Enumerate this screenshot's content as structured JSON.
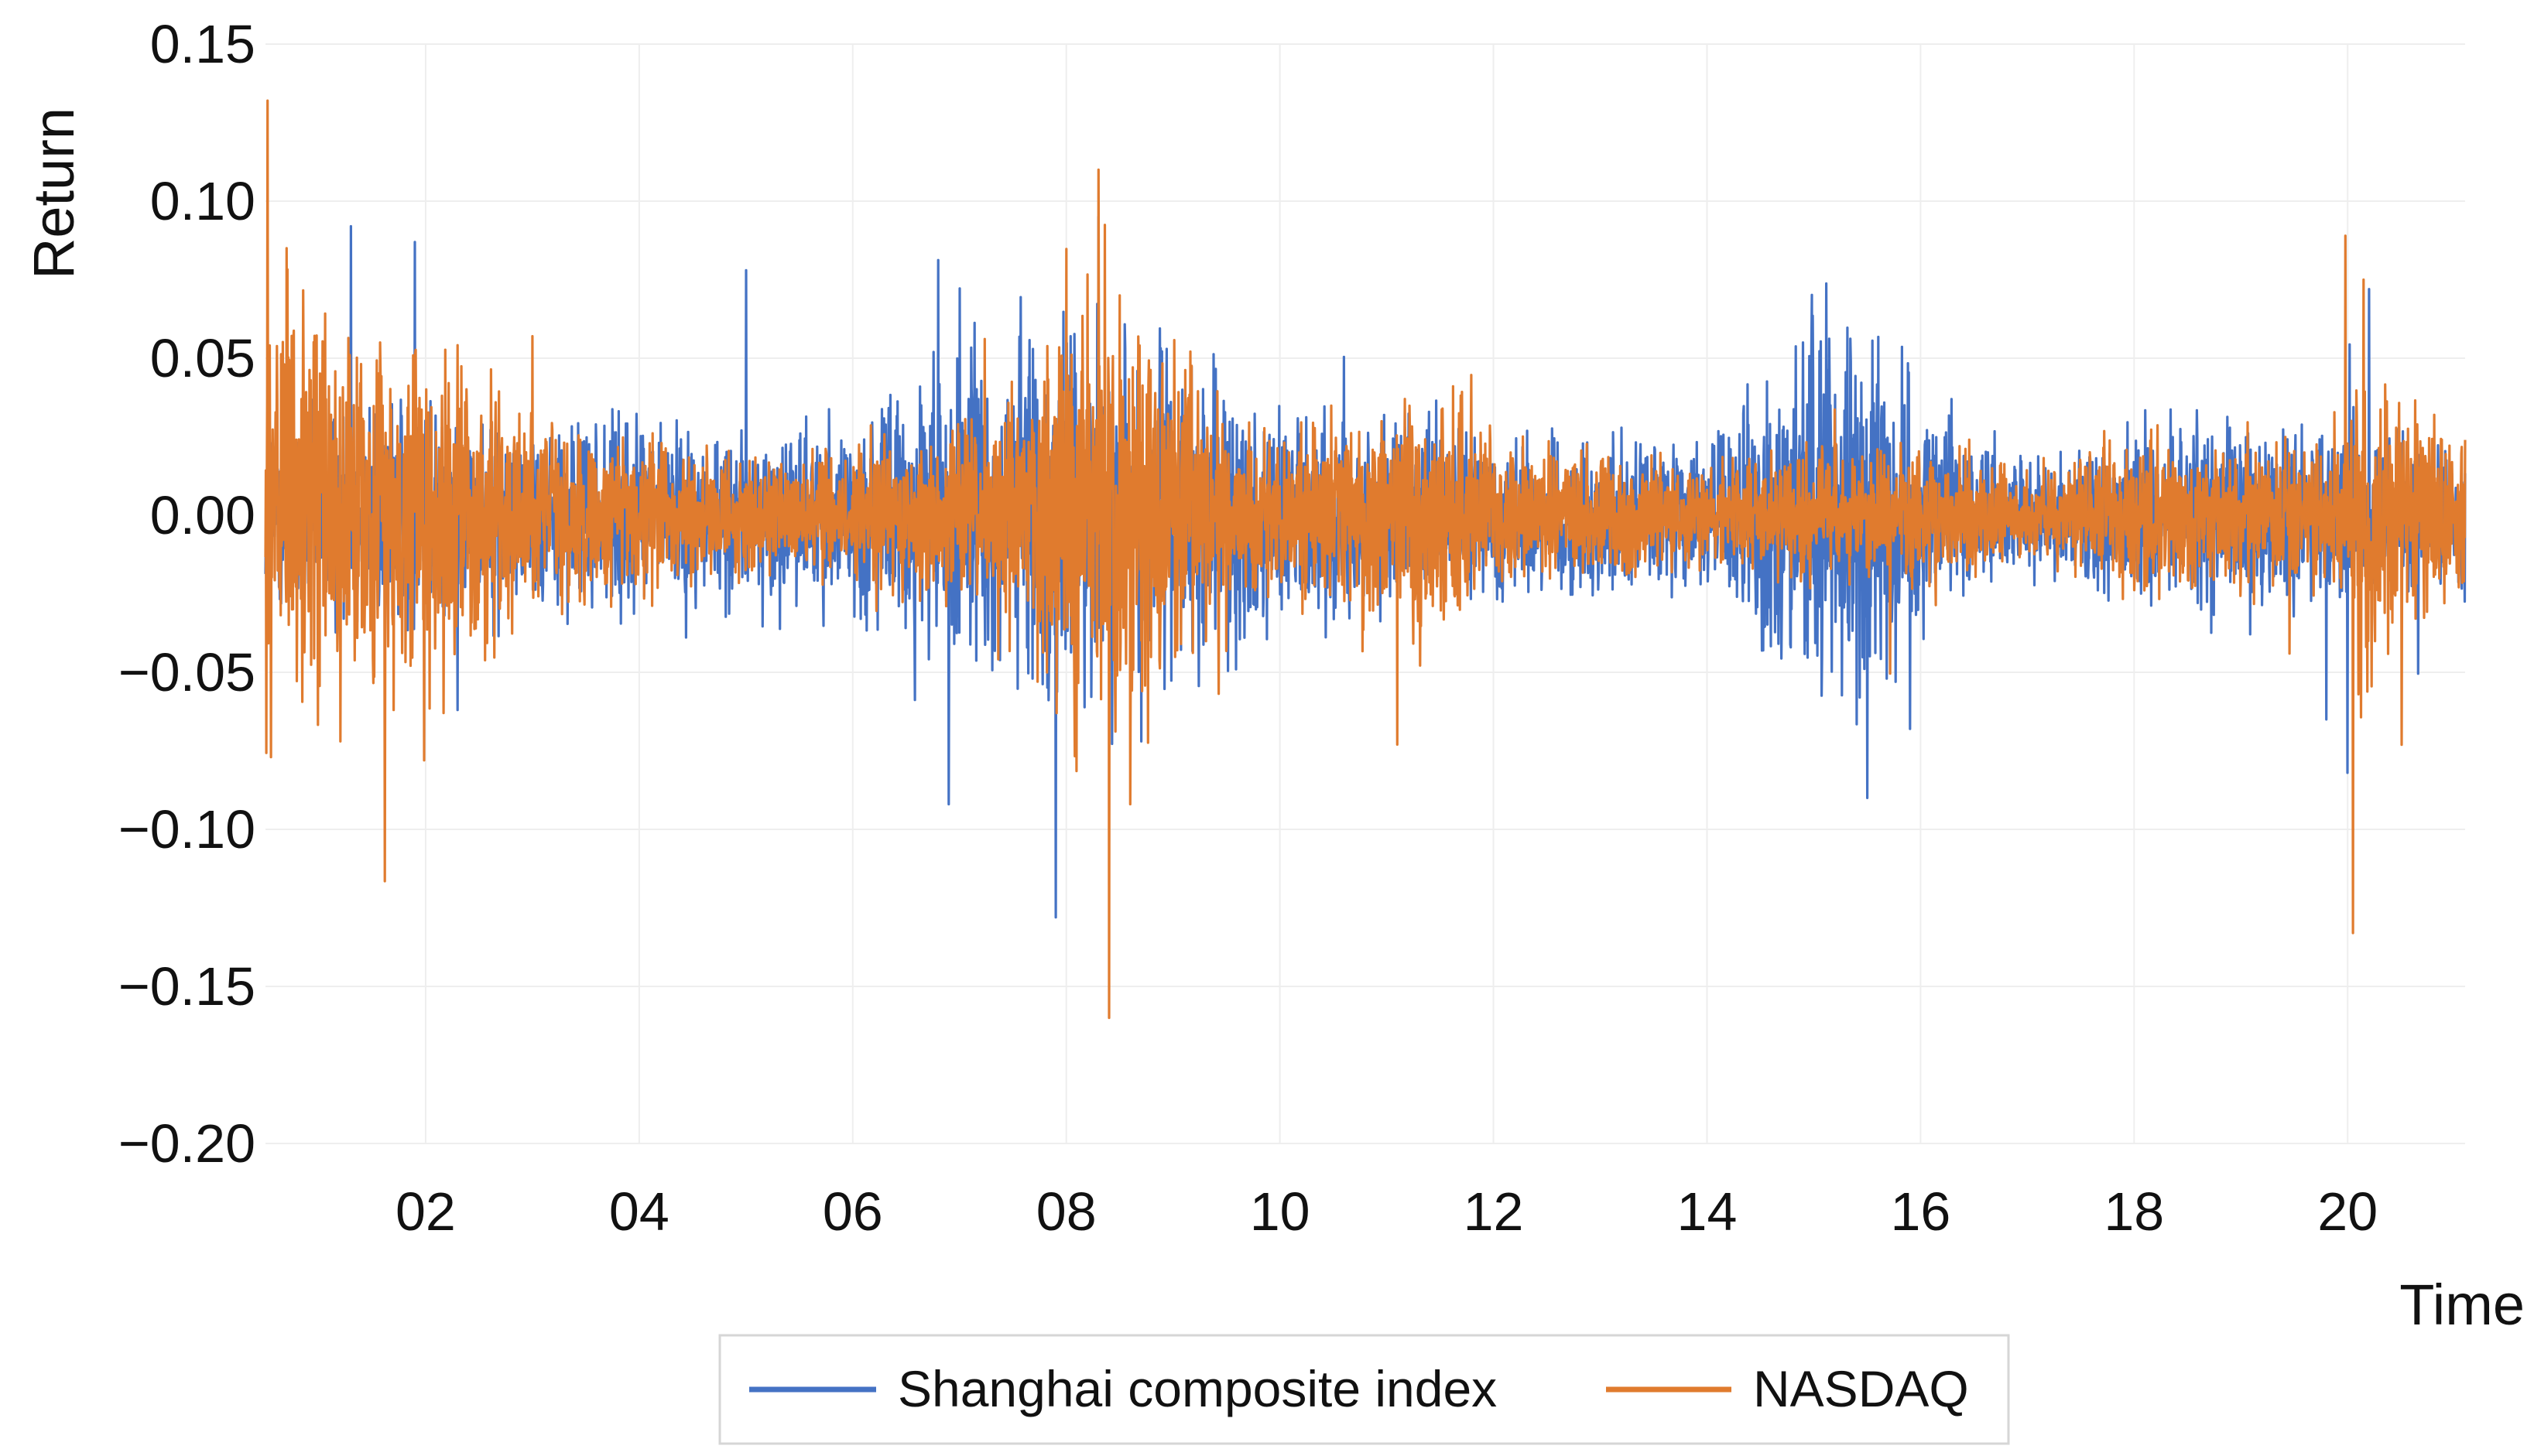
{
  "chart_data": {
    "type": "line",
    "title": "",
    "xlabel": "Time",
    "ylabel": "Return",
    "xlim": [
      2000.5,
      2021.1
    ],
    "ylim": [
      -0.2,
      0.15
    ],
    "grid": true,
    "yticks": [
      0.15,
      0.1,
      0.05,
      0.0,
      -0.05,
      -0.1,
      -0.15,
      -0.2
    ],
    "ytick_labels": [
      "0.15",
      "0.10",
      "0.05",
      "0.00",
      "−0.05",
      "−0.10",
      "−0.15",
      "−0.20"
    ],
    "xticks": [
      2002,
      2004,
      2006,
      2008,
      2010,
      2012,
      2014,
      2016,
      2018,
      2020
    ],
    "xtick_labels": [
      "02",
      "04",
      "06",
      "08",
      "10",
      "12",
      "14",
      "16",
      "18",
      "20"
    ],
    "legend": {
      "placement": "bottom-center",
      "entries": [
        "Shanghai composite index",
        "NASDAQ"
      ]
    },
    "series": [
      {
        "name": "Shanghai composite index",
        "color": "#4472C4",
        "volatility": [
          [
            2000.5,
            0.014
          ],
          [
            2001,
            0.016
          ],
          [
            2001.5,
            0.018
          ],
          [
            2002,
            0.015
          ],
          [
            2003,
            0.012
          ],
          [
            2004,
            0.014
          ],
          [
            2005,
            0.012
          ],
          [
            2006,
            0.014
          ],
          [
            2007,
            0.024
          ],
          [
            2008,
            0.028
          ],
          [
            2009,
            0.022
          ],
          [
            2010,
            0.016
          ],
          [
            2011,
            0.013
          ],
          [
            2012,
            0.012
          ],
          [
            2013,
            0.012
          ],
          [
            2014,
            0.01
          ],
          [
            2015,
            0.03
          ],
          [
            2015.7,
            0.024
          ],
          [
            2016,
            0.015
          ],
          [
            2017,
            0.008
          ],
          [
            2018,
            0.012
          ],
          [
            2019,
            0.014
          ],
          [
            2020,
            0.013
          ],
          [
            2021,
            0.011
          ]
        ],
        "spikes": [
          [
            2001.3,
            0.092
          ],
          [
            2001.9,
            0.087
          ],
          [
            2002.3,
            -0.062
          ],
          [
            2005,
            0.078
          ],
          [
            2006.9,
            -0.092
          ],
          [
            2007.9,
            -0.128
          ],
          [
            2008.3,
            0.095
          ],
          [
            2008.7,
            -0.072
          ],
          [
            2014.9,
            0.055
          ],
          [
            2015.5,
            -0.09
          ],
          [
            2015.9,
            -0.068
          ],
          [
            2020.2,
            0.072
          ],
          [
            2020,
            -0.082
          ],
          [
            2019.8,
            -0.065
          ]
        ]
      },
      {
        "name": "NASDAQ",
        "color": "#E07B2E",
        "volatility": [
          [
            2000.5,
            0.034
          ],
          [
            2001,
            0.03
          ],
          [
            2001.5,
            0.026
          ],
          [
            2002,
            0.024
          ],
          [
            2002.5,
            0.022
          ],
          [
            2003,
            0.014
          ],
          [
            2004,
            0.012
          ],
          [
            2005,
            0.009
          ],
          [
            2006,
            0.01
          ],
          [
            2007,
            0.012
          ],
          [
            2007.8,
            0.022
          ],
          [
            2008.2,
            0.036
          ],
          [
            2008.8,
            0.032
          ],
          [
            2009.2,
            0.02
          ],
          [
            2010,
            0.011
          ],
          [
            2011,
            0.016
          ],
          [
            2011.6,
            0.018
          ],
          [
            2012,
            0.01
          ],
          [
            2013,
            0.009
          ],
          [
            2014,
            0.008
          ],
          [
            2015,
            0.01
          ],
          [
            2016,
            0.01
          ],
          [
            2017,
            0.006
          ],
          [
            2018,
            0.012
          ],
          [
            2019,
            0.01
          ],
          [
            2020,
            0.012
          ],
          [
            2020.2,
            0.03
          ],
          [
            2020.5,
            0.016
          ],
          [
            2021,
            0.012
          ]
        ],
        "spikes": [
          [
            2000.52,
            0.132
          ],
          [
            2000.55,
            -0.077
          ],
          [
            2000.7,
            0.085
          ],
          [
            2001.2,
            -0.072
          ],
          [
            2001.7,
            -0.062
          ],
          [
            2003,
            0.057
          ],
          [
            2008.3,
            0.11
          ],
          [
            2008.4,
            -0.16
          ],
          [
            2008.5,
            0.07
          ],
          [
            2008.6,
            -0.092
          ],
          [
            2011.1,
            0.057
          ],
          [
            2011.1,
            -0.073
          ],
          [
            2019.98,
            0.089
          ],
          [
            2020.05,
            -0.133
          ],
          [
            2020.15,
            0.075
          ],
          [
            2020.1,
            -0.057
          ]
        ]
      }
    ]
  }
}
